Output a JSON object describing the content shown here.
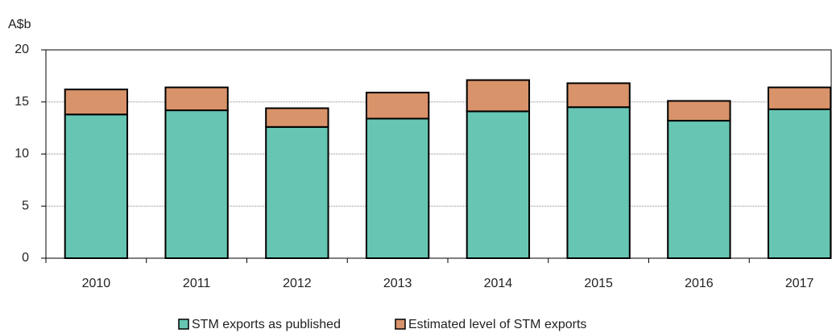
{
  "chart_data": {
    "type": "stacked_bar",
    "y_label": "A$b",
    "categories": [
      "2010",
      "2011",
      "2012",
      "2013",
      "2014",
      "2015",
      "2016",
      "2017"
    ],
    "series": [
      {
        "name": "STM exports as published",
        "color": "#66c6b3",
        "values": [
          13.8,
          14.2,
          12.6,
          13.4,
          14.1,
          14.5,
          13.2,
          14.3
        ]
      },
      {
        "name": "Estimated level of STM exports",
        "color": "#d8936a",
        "values": [
          2.4,
          2.2,
          1.8,
          2.5,
          3.0,
          2.3,
          1.9,
          2.1
        ]
      }
    ],
    "ylim": [
      0,
      20
    ],
    "yticks": [
      0,
      5,
      10,
      15,
      20
    ],
    "grid": true
  }
}
